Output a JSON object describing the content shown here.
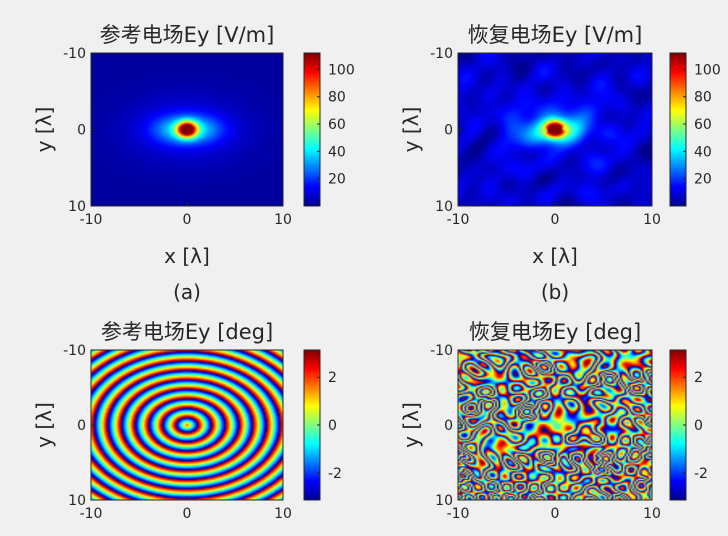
{
  "figure": {
    "background": "#f0f0f0"
  },
  "chart_data": [
    {
      "type": "heatmap",
      "title": "参考电场Ey [V/m]",
      "xlabel": "x [λ]",
      "ylabel": "y [λ]",
      "caption": "(a)",
      "xlim": [
        -10,
        10
      ],
      "ylim": [
        -10,
        10
      ],
      "xticks": [
        "-10",
        "0",
        "10"
      ],
      "yticks": [
        "-10",
        "0",
        "10"
      ],
      "colorbar": {
        "min": 0,
        "max": 112,
        "ticks": [
          "20",
          "40",
          "60",
          "80",
          "100"
        ],
        "tick_values": [
          20,
          40,
          60,
          80,
          100
        ],
        "colormap": "jet"
      },
      "field": "magnitude",
      "noisy": false
    },
    {
      "type": "heatmap",
      "title": "恢复电场Ey [V/m]",
      "xlabel": "x [λ]",
      "ylabel": "y [λ]",
      "caption": "(b)",
      "xlim": [
        -10,
        10
      ],
      "ylim": [
        -10,
        10
      ],
      "xticks": [
        "-10",
        "0",
        "10"
      ],
      "yticks": [
        "-10",
        "0",
        "10"
      ],
      "colorbar": {
        "min": 0,
        "max": 112,
        "ticks": [
          "20",
          "40",
          "60",
          "80",
          "100"
        ],
        "tick_values": [
          20,
          40,
          60,
          80,
          100
        ],
        "colormap": "jet"
      },
      "field": "magnitude",
      "noisy": true
    },
    {
      "type": "heatmap",
      "title": "参考电场Ey [deg]",
      "xlabel": "",
      "ylabel": "y [λ]",
      "caption": "",
      "xlim": [
        -10,
        10
      ],
      "ylim": [
        -10,
        10
      ],
      "xticks": [
        "-10",
        "0",
        "10"
      ],
      "yticks": [
        "-10",
        "0",
        "10"
      ],
      "colorbar": {
        "min": -3.14,
        "max": 3.14,
        "ticks": [
          "-2",
          "0",
          "2"
        ],
        "tick_values": [
          -2,
          0,
          2
        ],
        "colormap": "jet"
      },
      "field": "phase",
      "noisy": false
    },
    {
      "type": "heatmap",
      "title": "恢复电场Ey [deg]",
      "xlabel": "",
      "ylabel": "y [λ]",
      "caption": "",
      "xlim": [
        -10,
        10
      ],
      "ylim": [
        -10,
        10
      ],
      "xticks": [
        "-10",
        "0",
        "10"
      ],
      "yticks": [
        "-10",
        "0",
        "10"
      ],
      "colorbar": {
        "min": -3.14,
        "max": 3.14,
        "ticks": [
          "-2",
          "0",
          "2"
        ],
        "tick_values": [
          -2,
          0,
          2
        ],
        "colormap": "jet"
      },
      "field": "phase",
      "noisy": true
    }
  ]
}
